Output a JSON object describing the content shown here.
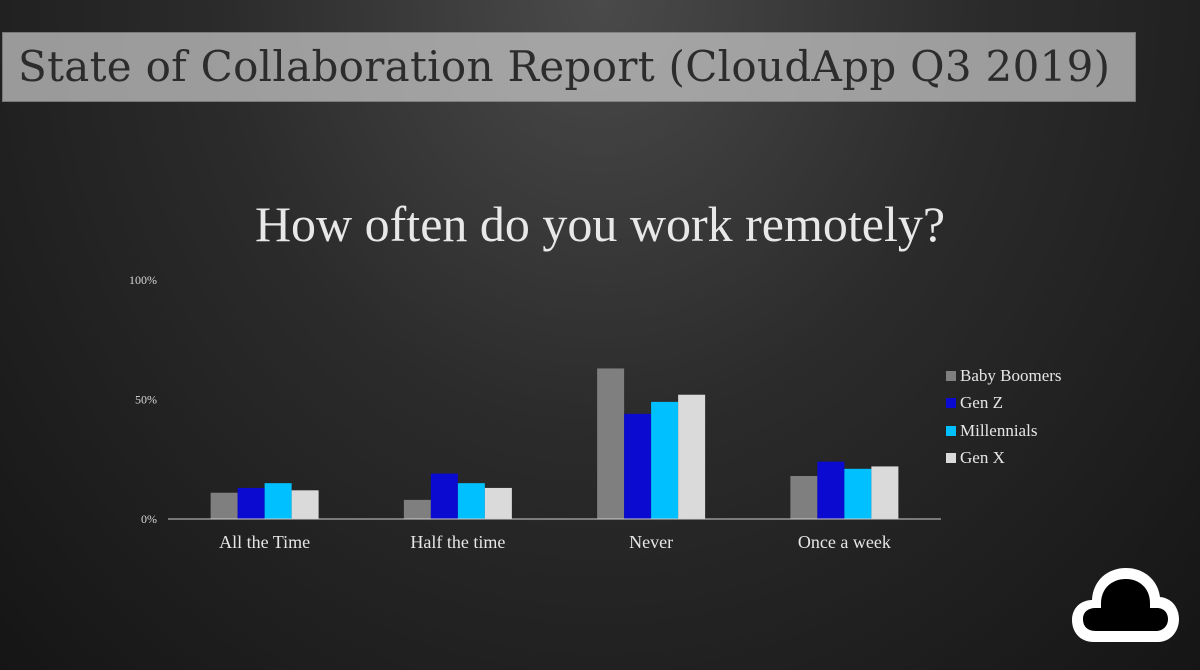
{
  "header": {
    "title": "State of Collaboration Report (CloudApp Q3 2019)"
  },
  "logo": {
    "icon": "cloud-icon"
  },
  "chart_data": {
    "type": "bar",
    "title": "How often do you work remotely?",
    "xlabel": "",
    "ylabel": "",
    "ylim": [
      0,
      100
    ],
    "y_ticks": [
      {
        "value": 0,
        "label": "0%"
      },
      {
        "value": 50,
        "label": "50%"
      },
      {
        "value": 100,
        "label": "100%"
      }
    ],
    "categories": [
      "All the Time",
      "Half the time",
      "Never",
      "Once a week"
    ],
    "series": [
      {
        "name": "Baby Boomers",
        "color": "#7f7f7f",
        "values": [
          11,
          8,
          63,
          18
        ]
      },
      {
        "name": "Gen Z",
        "color": "#0a0ad0",
        "values": [
          13,
          19,
          44,
          24
        ]
      },
      {
        "name": "Millennials",
        "color": "#00c0ff",
        "values": [
          15,
          15,
          49,
          21
        ]
      },
      {
        "name": "Gen X",
        "color": "#dadada",
        "values": [
          12,
          13,
          52,
          22
        ]
      }
    ],
    "grid": false,
    "legend_position": "right"
  }
}
